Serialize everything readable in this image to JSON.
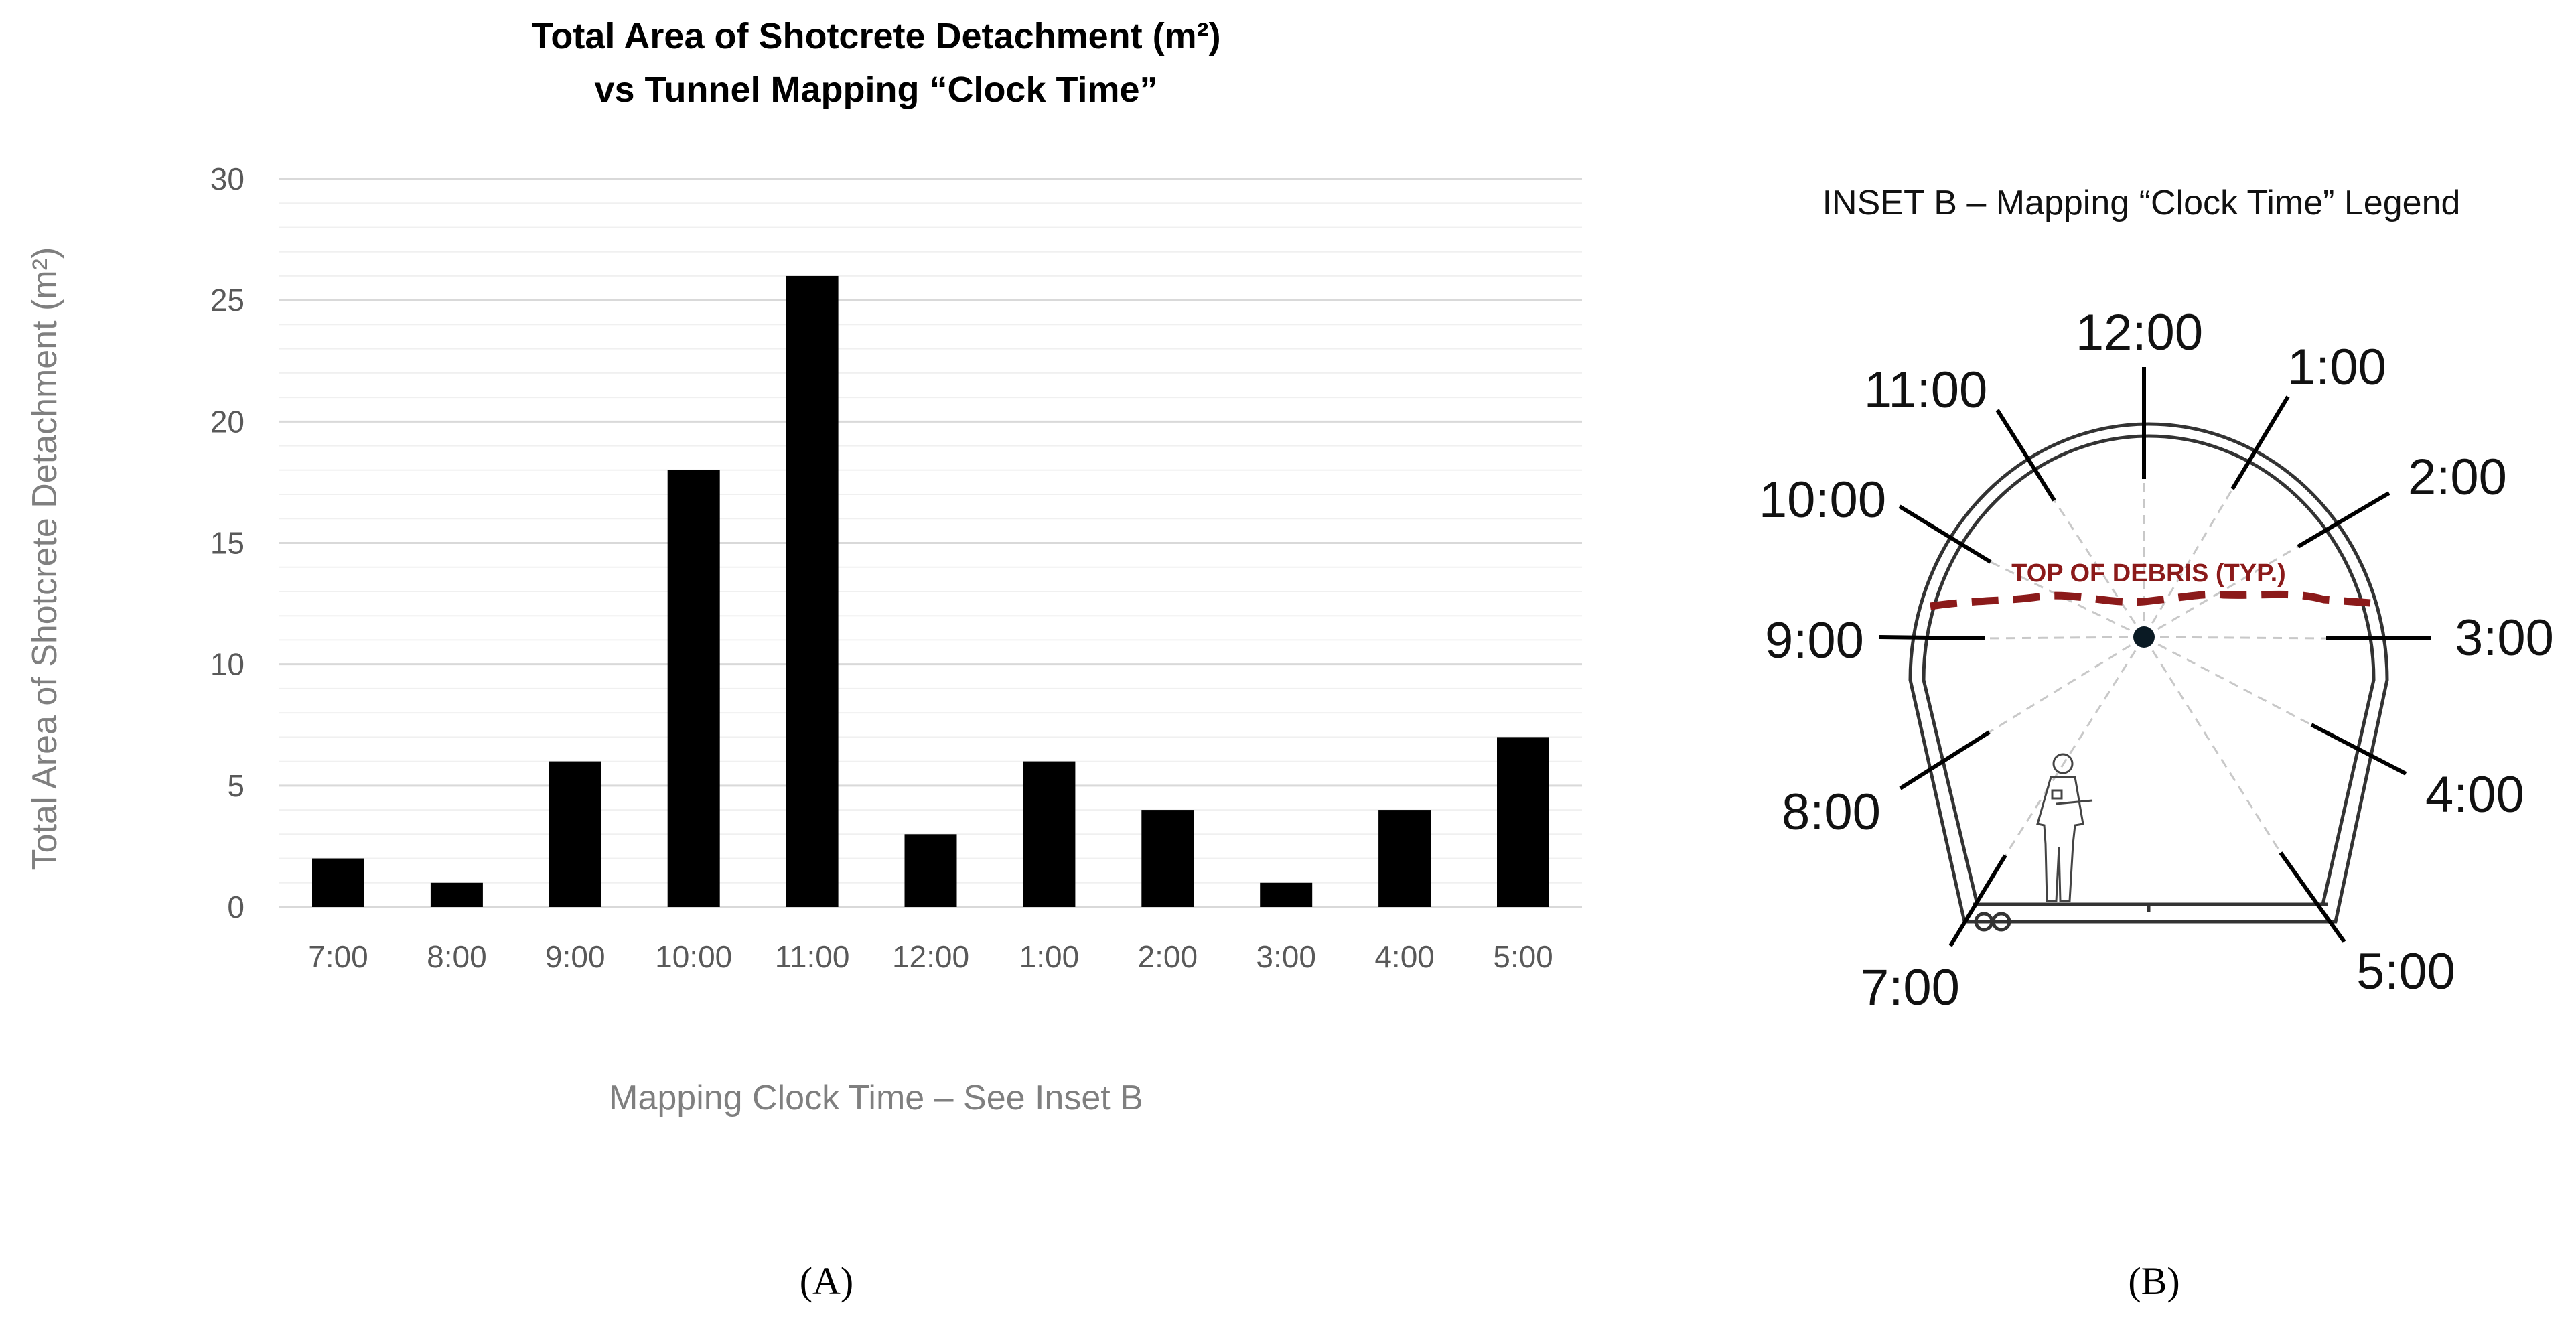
{
  "chart_data": {
    "type": "bar",
    "title_line1": "Total Area of Shotcrete Detachment (m²)",
    "title_line2": "vs Tunnel Mapping “Clock Time”",
    "xlabel": "Mapping Clock Time – See Inset B",
    "ylabel": "Total Area of Shotcrete Detachment (m²)",
    "categories": [
      "7:00",
      "8:00",
      "9:00",
      "10:00",
      "11:00",
      "12:00",
      "1:00",
      "2:00",
      "3:00",
      "4:00",
      "5:00"
    ],
    "values": [
      2,
      1,
      6,
      18,
      26,
      3,
      6,
      4,
      1,
      4,
      7
    ],
    "ylim": [
      0,
      30
    ],
    "yticks": [
      "0",
      "5",
      "10",
      "15",
      "20",
      "25",
      "30"
    ],
    "grid": true,
    "bar_color": "#000000"
  },
  "panels": {
    "a": "(A)",
    "b": "(B)"
  },
  "inset": {
    "title": "INSET B – Mapping “Clock Time” Legend",
    "debris_label": "TOP OF DEBRIS (TYP.)",
    "debris_color": "#8b1a1a",
    "clock_labels": [
      "12:00",
      "1:00",
      "2:00",
      "3:00",
      "4:00",
      "5:00",
      "7:00",
      "8:00",
      "9:00",
      "10:00",
      "11:00"
    ]
  }
}
